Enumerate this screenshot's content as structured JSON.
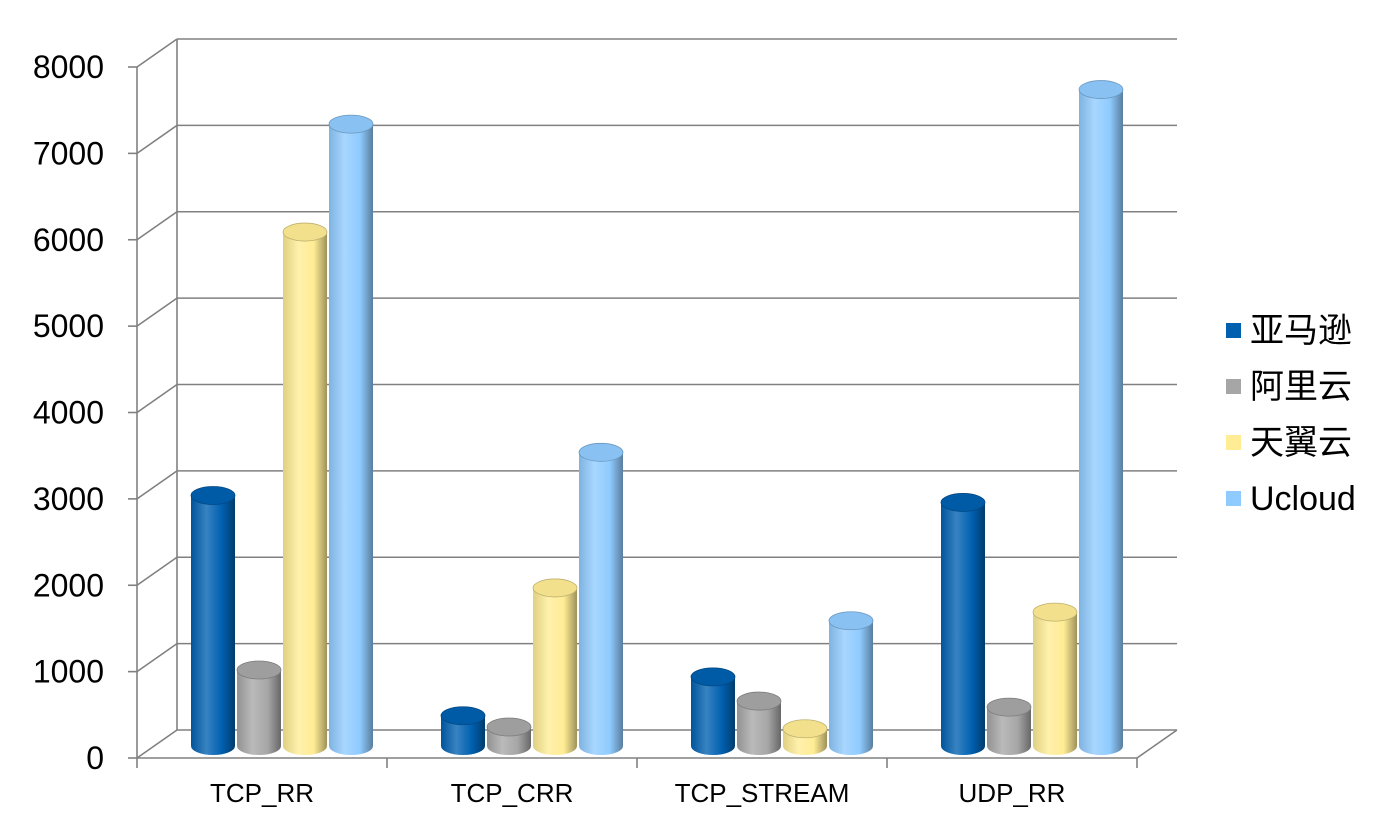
{
  "chart_data": {
    "type": "bar",
    "style": "3d-cylinder",
    "categories": [
      "TCP_RR",
      "TCP_CRR",
      "TCP_STREAM",
      "UDP_RR"
    ],
    "series": [
      {
        "name": "亚马逊",
        "values": [
          2900,
          350,
          800,
          2820
        ],
        "color": "#0060b0"
      },
      {
        "name": "阿里云",
        "values": [
          880,
          220,
          520,
          450
        ],
        "color": "#a6a6a6"
      },
      {
        "name": "天翼云",
        "values": [
          5950,
          1830,
          200,
          1550
        ],
        "color": "#ffec94"
      },
      {
        "name": "Ucloud",
        "values": [
          7200,
          3400,
          1450,
          7600
        ],
        "color": "#8fcbff"
      }
    ],
    "yticks": [
      0,
      1000,
      2000,
      3000,
      4000,
      5000,
      6000,
      7000,
      8000
    ],
    "ylim": [
      0,
      8000
    ],
    "grid": true,
    "legend_position": "right"
  }
}
